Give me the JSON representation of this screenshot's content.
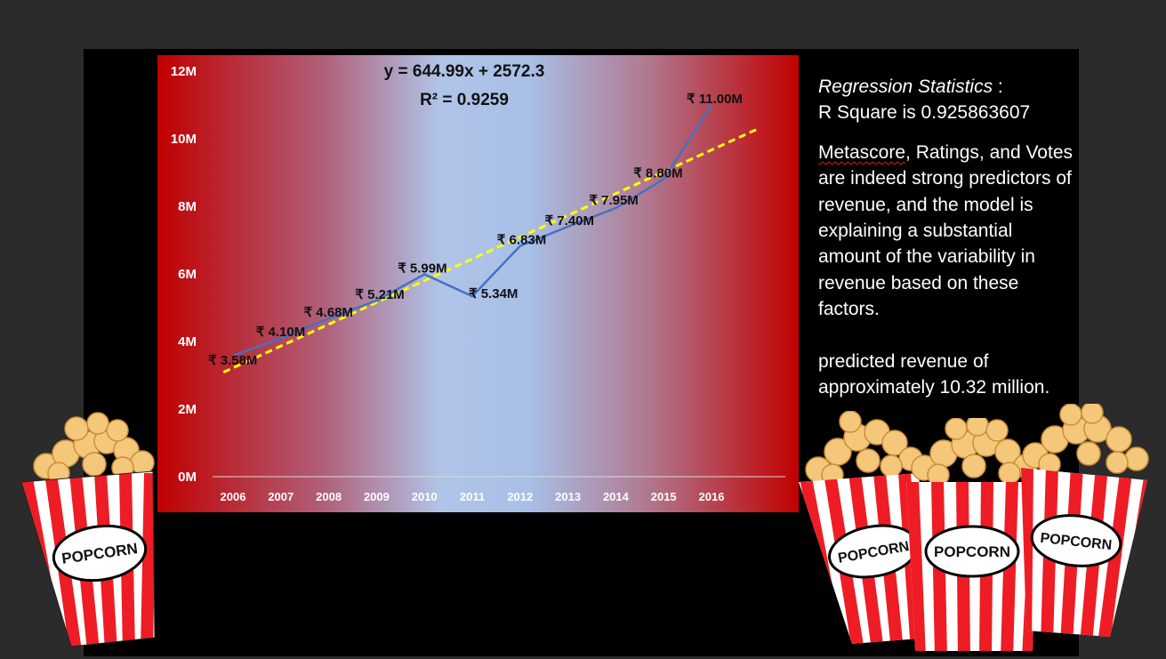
{
  "chart_data": {
    "type": "line",
    "x": [
      "2006",
      "2007",
      "2008",
      "2009",
      "2010",
      "2011",
      "2012",
      "2013",
      "2014",
      "2015",
      "2016"
    ],
    "series": [
      {
        "values": [
          3.58,
          4.1,
          4.68,
          5.21,
          5.99,
          5.34,
          6.83,
          7.4,
          7.95,
          8.8,
          11.0
        ]
      }
    ],
    "data_labels": [
      "₹ 3.58M",
      "₹ 4.10M",
      "₹ 4.68M",
      "₹ 5.21M",
      "₹ 5.99M",
      "₹ 5.34M",
      "₹ 6.83M",
      "₹ 7.40M",
      "₹ 7.95M",
      "₹ 8.80M",
      "₹ 11.00M"
    ],
    "y_ticks": [
      0,
      2,
      4,
      6,
      8,
      10,
      12
    ],
    "y_tick_labels": [
      "0M",
      "2M",
      "4M",
      "6M",
      "8M",
      "10M",
      "12M"
    ],
    "ylim": [
      0,
      12
    ],
    "trendline": {
      "type": "linear",
      "equation": "y = 644.99x + 2572.3",
      "r_squared": "R² = 0.9259",
      "color": "#ffff00",
      "style": "dashed",
      "x_start": "2006",
      "x_end": "2017"
    },
    "line_color": "#4472c4",
    "grid": false,
    "legend": "none"
  },
  "side_panel": {
    "stats_heading": "Regression Statistics",
    "stats_separator": " :",
    "r_square": "R Square is 0.925863607",
    "body_first_word": "Metascore",
    "body_rest": ", Ratings, and Votes are indeed strong predictors of revenue, and the model is explaining a substantial amount of the variability in revenue based on these factors.",
    "prediction": "predicted revenue of approximately 10.32 million."
  },
  "popcorn_label": "POPCORN"
}
